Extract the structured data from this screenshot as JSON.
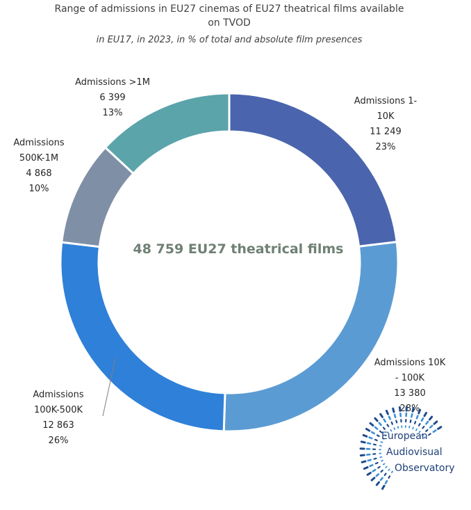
{
  "chart_data": {
    "type": "pie",
    "title": "Range of admissions in EU27 cinemas of EU27 theatrical films available on TVOD",
    "title_lines": [
      "Range of admissions in EU27 cinemas of EU27 theatrical films available",
      "on TVOD"
    ],
    "subtitle": "in EU17, in 2023, in % of total and absolute film presences",
    "center_label": "48 759 EU27 theatrical films",
    "total": 48759,
    "slices": [
      {
        "name": "Admissions 1-10K",
        "label_lines": [
          "Admissions 1-",
          "10K"
        ],
        "value": 11249,
        "value_label": "11 249",
        "percent_label": "23%",
        "color": "#4a65ad"
      },
      {
        "name": "Admissions 10K - 100K",
        "label_lines": [
          "Admissions 10K",
          "- 100K"
        ],
        "value": 13380,
        "value_label": "13 380",
        "percent_label": "28%",
        "color": "#5b9bd3"
      },
      {
        "name": "Admissions 100K-500K",
        "label_lines": [
          "Admissions",
          "100K-500K"
        ],
        "value": 12863,
        "value_label": "12 863",
        "percent_label": "26%",
        "color": "#2f80d8"
      },
      {
        "name": "Admissions 500K-1M",
        "label_lines": [
          "Admissions",
          "500K-1M"
        ],
        "value": 4868,
        "value_label": "4 868",
        "percent_label": "10%",
        "color": "#7f8fa6"
      },
      {
        "name": "Admissions >1M",
        "label_lines": [
          "Admissions >1M"
        ],
        "value": 6399,
        "value_label": "6 399",
        "percent_label": "13%",
        "color": "#5aa4aa"
      }
    ]
  },
  "logo": {
    "lines": [
      "European",
      "Audiovisual",
      "Observatory"
    ],
    "color": "#1f4a8c"
  }
}
